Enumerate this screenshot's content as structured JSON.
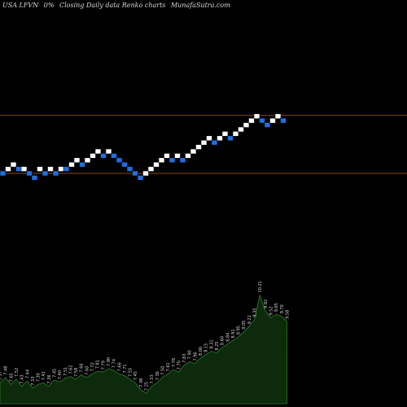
{
  "header": {
    "symbol": "USA LFVN",
    "change": "0%",
    "chart_desc": "Closing Daily data Renko charts",
    "site": "MunafaSutra.com"
  },
  "colors": {
    "background": "#000000",
    "up_brick": "#ffffff",
    "down_brick": "#1f6fe0",
    "resistance_line": "#8a4a1a",
    "volume_fill": "#0d2a0d",
    "volume_stroke": "#2f7a2f",
    "volume_label": "#d8d8d8"
  },
  "chart_data": {
    "type": "renko",
    "title": "USA LFVN 0%-- Closing Daily data Renko charts MunafaSutra.com",
    "bricks": [
      {
        "level": 0,
        "dir": "down"
      },
      {
        "level": 1,
        "dir": "up"
      },
      {
        "level": 2,
        "dir": "up"
      },
      {
        "level": 1,
        "dir": "down"
      },
      {
        "level": 1,
        "dir": "up"
      },
      {
        "level": 0,
        "dir": "down"
      },
      {
        "level": -1,
        "dir": "down"
      },
      {
        "level": 1,
        "dir": "up"
      },
      {
        "level": 0,
        "dir": "down"
      },
      {
        "level": 1,
        "dir": "up"
      },
      {
        "level": 0,
        "dir": "down"
      },
      {
        "level": 1,
        "dir": "up"
      },
      {
        "level": 1,
        "dir": "down"
      },
      {
        "level": 2,
        "dir": "up"
      },
      {
        "level": 3,
        "dir": "up"
      },
      {
        "level": 2,
        "dir": "down"
      },
      {
        "level": 3,
        "dir": "up"
      },
      {
        "level": 4,
        "dir": "up"
      },
      {
        "level": 5,
        "dir": "up"
      },
      {
        "level": 4,
        "dir": "down"
      },
      {
        "level": 5,
        "dir": "up"
      },
      {
        "level": 4,
        "dir": "down"
      },
      {
        "level": 3,
        "dir": "down"
      },
      {
        "level": 2,
        "dir": "down"
      },
      {
        "level": 1,
        "dir": "down"
      },
      {
        "level": 0,
        "dir": "down"
      },
      {
        "level": -1,
        "dir": "down"
      },
      {
        "level": 0,
        "dir": "up"
      },
      {
        "level": 1,
        "dir": "up"
      },
      {
        "level": 2,
        "dir": "up"
      },
      {
        "level": 3,
        "dir": "up"
      },
      {
        "level": 4,
        "dir": "up"
      },
      {
        "level": 3,
        "dir": "down"
      },
      {
        "level": 4,
        "dir": "up"
      },
      {
        "level": 3,
        "dir": "down"
      },
      {
        "level": 4,
        "dir": "up"
      },
      {
        "level": 5,
        "dir": "up"
      },
      {
        "level": 6,
        "dir": "up"
      },
      {
        "level": 7,
        "dir": "up"
      },
      {
        "level": 8,
        "dir": "up"
      },
      {
        "level": 7,
        "dir": "down"
      },
      {
        "level": 8,
        "dir": "up"
      },
      {
        "level": 9,
        "dir": "up"
      },
      {
        "level": 8,
        "dir": "down"
      },
      {
        "level": 9,
        "dir": "up"
      },
      {
        "level": 10,
        "dir": "up"
      },
      {
        "level": 11,
        "dir": "up"
      },
      {
        "level": 12,
        "dir": "up"
      },
      {
        "level": 13,
        "dir": "up"
      },
      {
        "level": 12,
        "dir": "down"
      },
      {
        "level": 11,
        "dir": "down"
      },
      {
        "level": 12,
        "dir": "up"
      },
      {
        "level": 13,
        "dir": "up"
      },
      {
        "level": 12,
        "dir": "down"
      }
    ],
    "resistance_levels": [
      13,
      0
    ],
    "volume_labels": [
      "7.57",
      "7.48",
      "7.65",
      "7.52",
      "7.43",
      "7.44",
      "7.33",
      "7.30",
      "7.41",
      "7.36",
      "7.45",
      "7.40",
      "7.51",
      "7.62",
      "7.58",
      "7.66",
      "7.60",
      "7.72",
      "7.81",
      "7.79",
      "7.90",
      "7.74",
      "7.66",
      "7.71",
      "7.55",
      "7.45",
      "7.38",
      "7.25",
      "7.33",
      "7.36",
      "7.50",
      "7.61",
      "7.78",
      "7.70",
      "7.83",
      "7.90",
      "7.96",
      "8.06",
      "8.15",
      "8.31",
      "8.25",
      "8.60",
      "8.84",
      "8.91",
      "8.95",
      "9.05",
      "9.22",
      "9.35",
      "10.21",
      "9.92",
      "9.52",
      "9.65",
      "9.70",
      "9.58"
    ],
    "volume_values": [
      24,
      30,
      22,
      28,
      20,
      26,
      18,
      22,
      24,
      20,
      27,
      25,
      29,
      31,
      28,
      33,
      30,
      34,
      37,
      36,
      40,
      38,
      34,
      32,
      28,
      24,
      16,
      12,
      20,
      24,
      30,
      34,
      39,
      36,
      44,
      48,
      46,
      52,
      56,
      60,
      58,
      64,
      68,
      72,
      76,
      82,
      88,
      96,
      124,
      106,
      98,
      102,
      100,
      94
    ],
    "volume_max": 130
  }
}
